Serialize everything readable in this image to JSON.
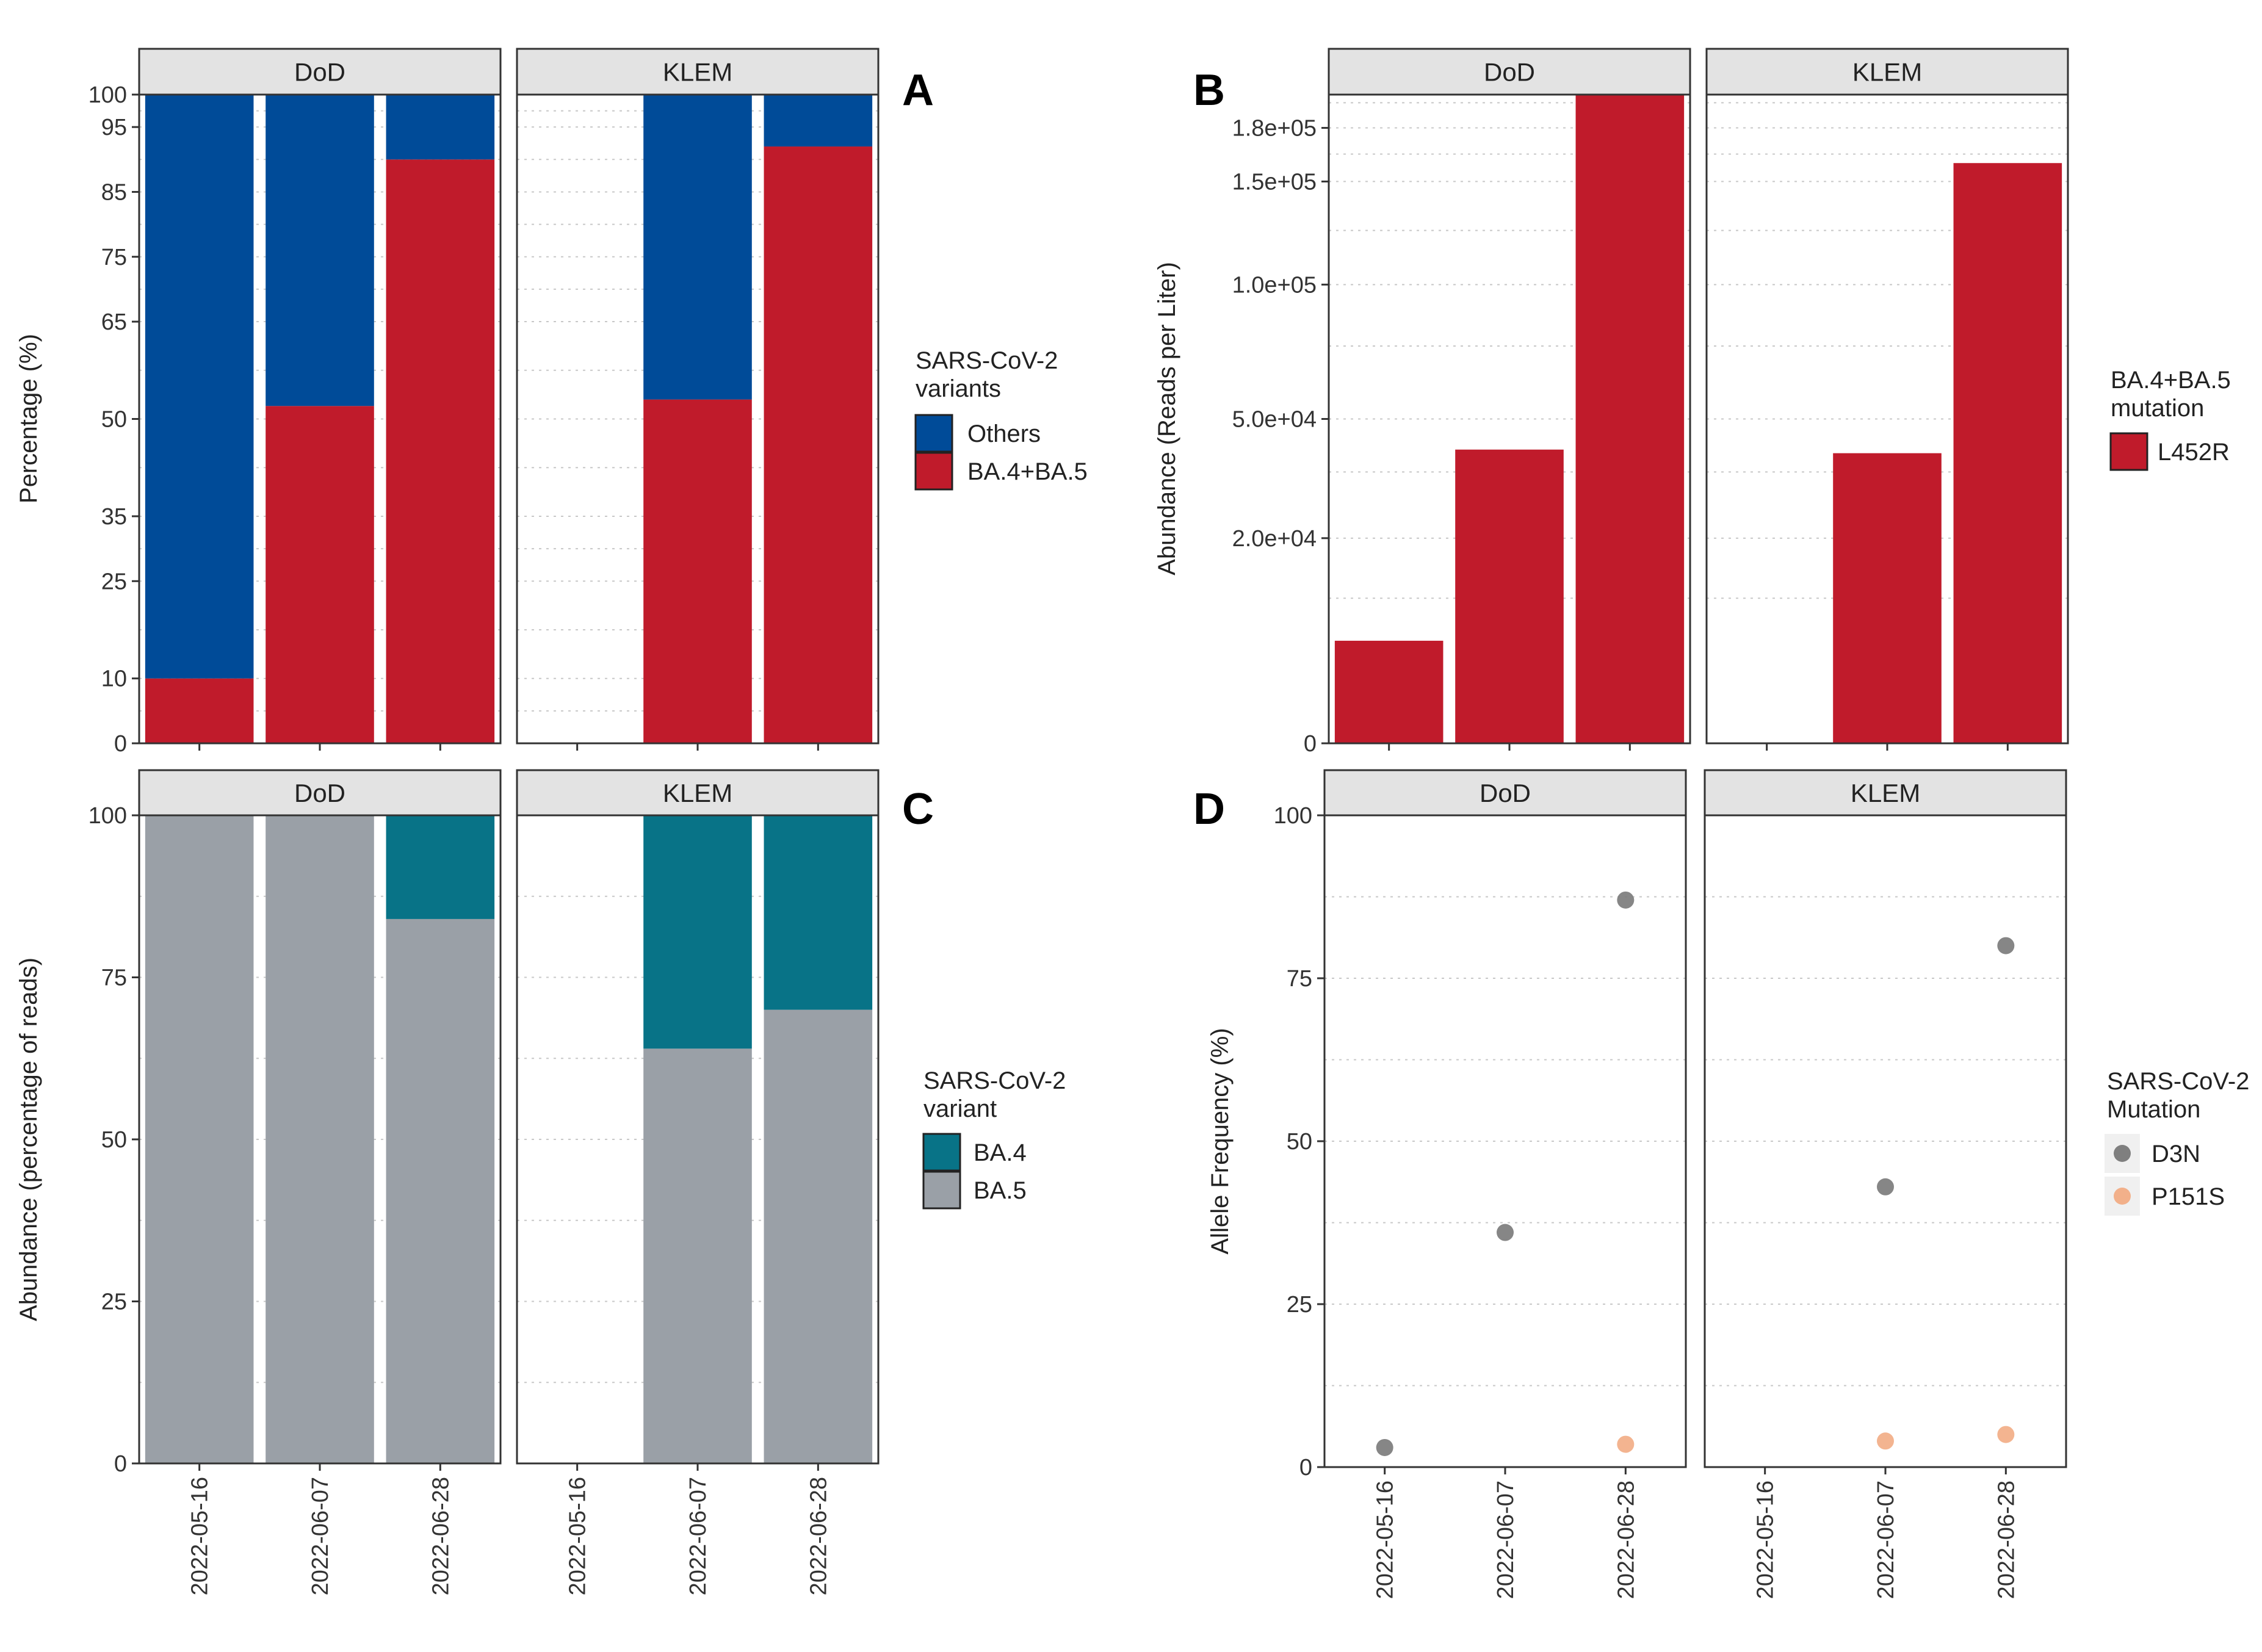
{
  "figure_labels": [
    "A",
    "B",
    "C",
    "D"
  ],
  "chart_data": [
    {
      "id": "A",
      "type": "bar",
      "stacked": true,
      "facets": [
        "DoD",
        "KLEM"
      ],
      "categories": [
        "2022-05-16",
        "2022-06-07",
        "2022-06-28"
      ],
      "series": [
        {
          "name": "BA.4+BA.5",
          "color": "#c01b2b",
          "values": {
            "DoD": [
              10,
              52,
              90
            ],
            "KLEM": [
              null,
              53,
              92
            ]
          }
        },
        {
          "name": "Others",
          "color": "#004b98",
          "values": {
            "DoD": [
              90,
              48,
              10
            ],
            "KLEM": [
              null,
              47,
              8
            ]
          }
        }
      ],
      "ylabel": "Percentage (%)",
      "ylim": [
        0,
        100
      ],
      "yticks": [
        0,
        10,
        25,
        35,
        50,
        65,
        75,
        85,
        95,
        100
      ],
      "legend_title": [
        "SARS-CoV-2",
        "variants"
      ],
      "legend_entries": [
        {
          "label": "Others",
          "color": "#004b98"
        },
        {
          "label": "BA.4+BA.5",
          "color": "#c01b2b"
        }
      ]
    },
    {
      "id": "B",
      "type": "bar",
      "facets": [
        "DoD",
        "KLEM"
      ],
      "categories": [
        "2022-05-16",
        "2022-06-07",
        "2022-06-28"
      ],
      "series": [
        {
          "name": "L452R",
          "color": "#c01b2b",
          "values": {
            "DoD": [
              5000,
              41000,
              200000
            ],
            "KLEM": [
              null,
              40000,
              160000
            ]
          }
        }
      ],
      "ylabel": "Abundance (Reads per Liter)",
      "ylim": [
        0,
        200000
      ],
      "yticks": [
        0,
        20000,
        50000,
        100000,
        150000,
        180000
      ],
      "ytick_labels": [
        "0",
        "2.0e+04",
        "5.0e+04",
        "1.0e+05",
        "1.5e+05",
        "1.8e+05"
      ],
      "y_scale": "sqrt",
      "legend_title": [
        "BA.4+BA.5",
        "mutation"
      ],
      "legend_entries": [
        {
          "label": "L452R",
          "color": "#c01b2b"
        }
      ]
    },
    {
      "id": "C",
      "type": "bar",
      "stacked": true,
      "facets": [
        "DoD",
        "KLEM"
      ],
      "categories": [
        "2022-05-16",
        "2022-06-07",
        "2022-06-28"
      ],
      "series": [
        {
          "name": "BA.5",
          "color": "#9aa0a7",
          "values": {
            "DoD": [
              100,
              100,
              84
            ],
            "KLEM": [
              null,
              64,
              70
            ]
          }
        },
        {
          "name": "BA.4",
          "color": "#087387",
          "values": {
            "DoD": [
              0,
              0,
              16
            ],
            "KLEM": [
              null,
              36,
              30
            ]
          }
        }
      ],
      "ylabel": "Abundance (percentage of reads)",
      "ylim": [
        0,
        100
      ],
      "yticks": [
        0,
        25,
        50,
        75,
        100
      ],
      "legend_title": [
        "SARS-CoV-2",
        "variant"
      ],
      "legend_entries": [
        {
          "label": "BA.4",
          "color": "#087387"
        },
        {
          "label": "BA.5",
          "color": "#9aa0a7"
        }
      ]
    },
    {
      "id": "D",
      "type": "scatter",
      "facets": [
        "DoD",
        "KLEM"
      ],
      "categories": [
        "2022-05-16",
        "2022-06-07",
        "2022-06-28"
      ],
      "series": [
        {
          "name": "D3N",
          "color": "#7f7f7f",
          "values": {
            "DoD": [
              3,
              36,
              87
            ],
            "KLEM": [
              null,
              43,
              80
            ]
          }
        },
        {
          "name": "P151S",
          "color": "#f2b08a",
          "values": {
            "DoD": [
              null,
              null,
              3.5
            ],
            "KLEM": [
              null,
              4,
              5
            ]
          }
        }
      ],
      "ylabel": "Allele Frequency (%)",
      "ylim": [
        0,
        100
      ],
      "yticks": [
        0,
        25,
        50,
        75,
        100
      ],
      "legend_title": [
        "SARS-CoV-2",
        "Mutation"
      ],
      "legend_entries": [
        {
          "label": "D3N",
          "color": "#7f7f7f"
        },
        {
          "label": "P151S",
          "color": "#f2b08a"
        }
      ]
    }
  ]
}
